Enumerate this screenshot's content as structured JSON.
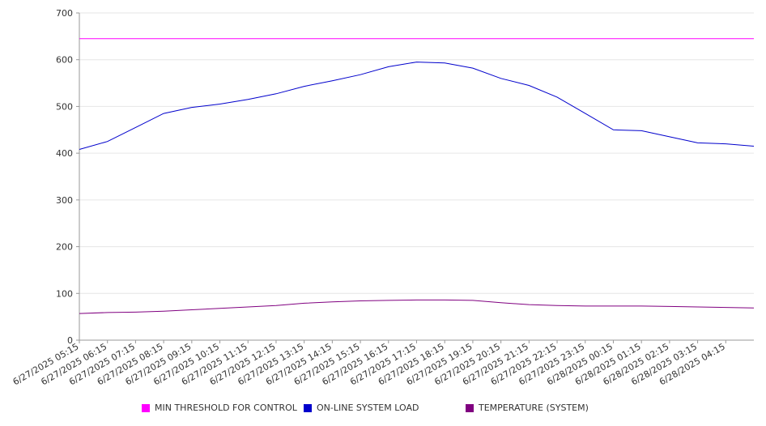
{
  "chart_data": {
    "type": "line",
    "ylim": [
      0,
      700
    ],
    "yticks": [
      0,
      100,
      200,
      300,
      400,
      500,
      600,
      700
    ],
    "x_tick_labels": [
      "6/27/2025 05:15",
      "6/27/2025 06:15",
      "6/27/2025 07:15",
      "6/27/2025 08:15",
      "6/27/2025 09:15",
      "6/27/2025 10:15",
      "6/27/2025 11:15",
      "6/27/2025 12:15",
      "6/27/2025 13:15",
      "6/27/2025 14:15",
      "6/27/2025 15:15",
      "6/27/2025 16:15",
      "6/27/2025 17:15",
      "6/27/2025 18:15",
      "6/27/2025 19:15",
      "6/27/2025 20:15",
      "6/27/2025 21:15",
      "6/27/2025 22:15",
      "6/27/2025 23:15",
      "6/28/2025 00:15",
      "6/28/2025 01:15",
      "6/28/2025 02:15",
      "6/28/2025 03:15",
      "6/28/2025 04:15"
    ],
    "grid": true,
    "legend_position": "bottom",
    "series": [
      {
        "name": "MIN THRESHOLD FOR CONTROL",
        "color": "#ff00ff",
        "values": [
          645,
          645,
          645,
          645,
          645,
          645,
          645,
          645,
          645,
          645,
          645,
          645,
          645,
          645,
          645,
          645,
          645,
          645,
          645,
          645,
          645,
          645,
          645,
          645,
          645
        ]
      },
      {
        "name": "ON-LINE SYSTEM LOAD",
        "color": "#0000cc",
        "values": [
          408,
          425,
          455,
          485,
          498,
          505,
          515,
          527,
          543,
          555,
          568,
          585,
          595,
          593,
          582,
          560,
          545,
          520,
          485,
          450,
          448,
          435,
          422,
          420,
          415
        ]
      },
      {
        "name": "TEMPERATURE (SYSTEM)",
        "color": "#800080",
        "values": [
          57,
          59,
          60,
          62,
          65,
          68,
          71,
          74,
          79,
          82,
          84,
          85,
          86,
          86,
          85,
          80,
          76,
          74,
          73,
          73,
          73,
          72,
          71,
          70,
          69
        ]
      }
    ]
  }
}
